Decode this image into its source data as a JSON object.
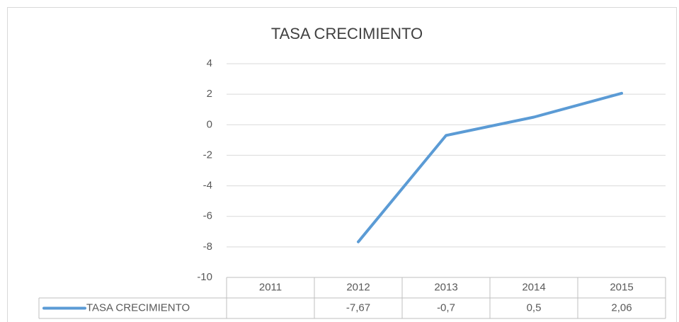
{
  "chart_data": {
    "type": "line",
    "title": "TASA CRECIMIENTO",
    "categories": [
      "2011",
      "2012",
      "2013",
      "2014",
      "2015"
    ],
    "series": [
      {
        "name": "TASA CRECIMIENTO",
        "color": "#5b9bd5",
        "values": [
          null,
          -7.67,
          -0.7,
          0.5,
          2.06
        ],
        "value_labels": [
          null,
          "-7,67",
          "-0,7",
          "0,5",
          "2,06"
        ]
      }
    ],
    "ylim": [
      -10,
      4
    ],
    "yticks": [
      -10,
      -8,
      -6,
      -4,
      -2,
      0,
      2,
      4
    ],
    "grid": true,
    "data_table": true
  }
}
